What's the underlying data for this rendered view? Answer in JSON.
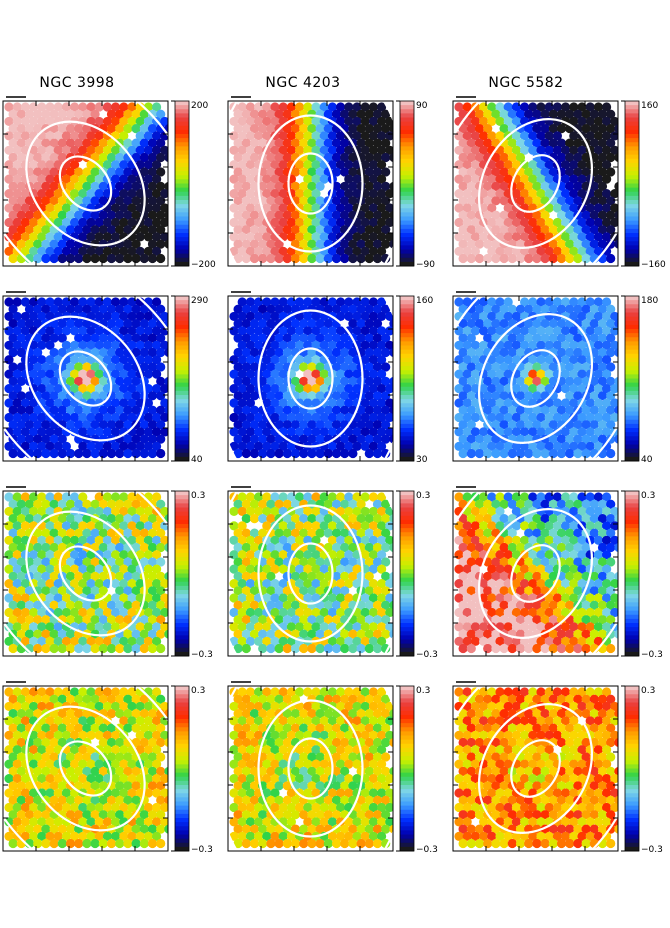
{
  "figure": {
    "columns": [
      "NGC 3998",
      "NGC 4203",
      "NGC 5582"
    ]
  },
  "chart_data": {
    "type": "heatmap",
    "colormap": [
      "#1a1a1a",
      "#0000b0",
      "#0030ff",
      "#3c9cff",
      "#7fd7e6",
      "#2fd34a",
      "#c8f000",
      "#ffd400",
      "#ff9a00",
      "#ff2d00",
      "#e94040",
      "#f2c0c0"
    ],
    "panels": [
      {
        "row": 1,
        "galaxy": "NGC 3998",
        "map": "velocity",
        "colorbar": {
          "max": "200",
          "min": "−200"
        },
        "angle": 40,
        "pattern": "rotation",
        "pa": -40
      },
      {
        "row": 1,
        "galaxy": "NGC 4203",
        "map": "velocity",
        "colorbar": {
          "max": "90",
          "min": "−90"
        },
        "angle": 0,
        "pattern": "rotation",
        "pa": 0
      },
      {
        "row": 1,
        "galaxy": "NGC 5582",
        "map": "velocity",
        "colorbar": {
          "max": "160",
          "min": "−160"
        },
        "angle": -30,
        "pattern": "rotation",
        "pa": 30
      },
      {
        "row": 2,
        "galaxy": "NGC 3998",
        "map": "dispersion",
        "colorbar": {
          "max": "290",
          "min": "40"
        },
        "pattern": "peak",
        "pa": -40
      },
      {
        "row": 2,
        "galaxy": "NGC 4203",
        "map": "dispersion",
        "colorbar": {
          "max": "160",
          "min": "30"
        },
        "pattern": "peak",
        "pa": 0
      },
      {
        "row": 2,
        "galaxy": "NGC 5582",
        "map": "dispersion",
        "colorbar": {
          "max": "180",
          "min": "40"
        },
        "pattern": "peak-flat",
        "pa": 30
      },
      {
        "row": 3,
        "galaxy": "NGC 3998",
        "map": "h3",
        "colorbar": {
          "max": "0.3",
          "min": "−0.3"
        },
        "pattern": "noise-green",
        "pa": -40
      },
      {
        "row": 3,
        "galaxy": "NGC 4203",
        "map": "h3",
        "colorbar": {
          "max": "0.3",
          "min": "−0.3"
        },
        "pattern": "noise-green",
        "pa": 0
      },
      {
        "row": 3,
        "galaxy": "NGC 5582",
        "map": "h3",
        "colorbar": {
          "max": "0.3",
          "min": "−0.3"
        },
        "pattern": "h3-anti",
        "pa": 30
      },
      {
        "row": 4,
        "galaxy": "NGC 3998",
        "map": "h4",
        "colorbar": {
          "max": "0.3",
          "min": "−0.3"
        },
        "pattern": "noise-yellow",
        "pa": -40
      },
      {
        "row": 4,
        "galaxy": "NGC 4203",
        "map": "h4",
        "colorbar": {
          "max": "0.3",
          "min": "−0.3"
        },
        "pattern": "noise-yellow",
        "pa": 0
      },
      {
        "row": 4,
        "galaxy": "NGC 5582",
        "map": "h4",
        "colorbar": {
          "max": "0.3",
          "min": "−0.3"
        },
        "pattern": "noise-orange",
        "pa": 30
      }
    ]
  }
}
